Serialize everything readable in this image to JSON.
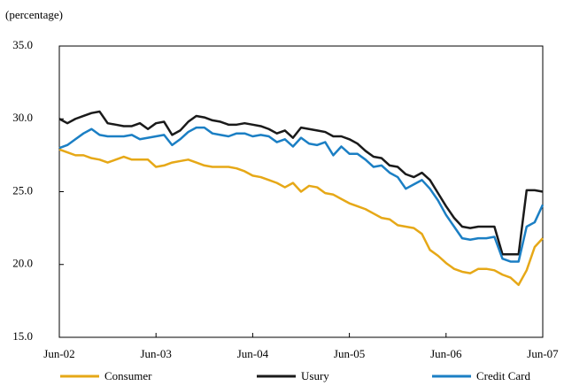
{
  "chart_data": {
    "type": "line",
    "y_label": "(percentage)",
    "categories": [
      "Jun-02",
      null,
      null,
      null,
      null,
      null,
      null,
      null,
      null,
      null,
      null,
      null,
      "Jun-03",
      null,
      null,
      null,
      null,
      null,
      null,
      null,
      null,
      null,
      null,
      null,
      "Jun-04",
      null,
      null,
      null,
      null,
      null,
      null,
      null,
      null,
      null,
      null,
      null,
      "Jun-05",
      null,
      null,
      null,
      null,
      null,
      null,
      null,
      null,
      null,
      null,
      null,
      "Jun-06",
      null,
      null,
      null,
      null,
      null,
      null,
      null,
      null,
      null,
      null,
      null,
      "Jun-07"
    ],
    "series": [
      {
        "name": "Consumer",
        "color": "#e6a817",
        "values": [
          27.9,
          27.7,
          27.5,
          27.5,
          27.3,
          27.2,
          27.0,
          27.2,
          27.4,
          27.2,
          27.2,
          27.2,
          26.7,
          26.8,
          27.0,
          27.1,
          27.2,
          27.0,
          26.8,
          26.7,
          26.7,
          26.7,
          26.6,
          26.4,
          26.1,
          26.0,
          25.8,
          25.6,
          25.3,
          25.6,
          25.0,
          25.4,
          25.3,
          24.9,
          24.8,
          24.5,
          24.2,
          24.0,
          23.8,
          23.5,
          23.2,
          23.1,
          22.7,
          22.6,
          22.5,
          22.1,
          21.0,
          20.6,
          20.1,
          19.7,
          19.5,
          19.4,
          19.7,
          19.7,
          19.6,
          19.3,
          19.1,
          18.6,
          19.6,
          21.2,
          21.8
        ]
      },
      {
        "name": "Usury",
        "color": "#1a1a1a",
        "values": [
          30.0,
          29.7,
          30.0,
          30.2,
          30.4,
          30.5,
          29.7,
          29.6,
          29.5,
          29.5,
          29.7,
          29.3,
          29.7,
          29.8,
          28.9,
          29.2,
          29.8,
          30.2,
          30.1,
          29.9,
          29.8,
          29.6,
          29.6,
          29.7,
          29.6,
          29.5,
          29.3,
          29.0,
          29.2,
          28.7,
          29.4,
          29.3,
          29.2,
          29.1,
          28.8,
          28.8,
          28.6,
          28.3,
          27.8,
          27.4,
          27.3,
          26.8,
          26.7,
          26.2,
          26.0,
          26.3,
          25.8,
          24.9,
          24.0,
          23.2,
          22.6,
          22.5,
          22.6,
          22.6,
          22.6,
          20.7,
          20.7,
          20.7,
          25.1,
          25.1,
          25.0
        ]
      },
      {
        "name": "Credit Card",
        "color": "#1b7fc4",
        "values": [
          28.0,
          28.2,
          28.6,
          29.0,
          29.3,
          28.9,
          28.8,
          28.8,
          28.8,
          28.9,
          28.6,
          28.7,
          28.8,
          28.9,
          28.2,
          28.6,
          29.1,
          29.4,
          29.4,
          29.0,
          28.9,
          28.8,
          29.0,
          29.0,
          28.8,
          28.9,
          28.8,
          28.4,
          28.6,
          28.1,
          28.7,
          28.3,
          28.2,
          28.4,
          27.5,
          28.1,
          27.6,
          27.6,
          27.2,
          26.7,
          26.8,
          26.3,
          26.0,
          25.2,
          25.5,
          25.8,
          25.2,
          24.4,
          23.4,
          22.6,
          21.8,
          21.7,
          21.8,
          21.8,
          21.9,
          20.4,
          20.2,
          20.2,
          22.6,
          22.9,
          24.1
        ]
      }
    ],
    "ylim": [
      15,
      35
    ],
    "yticks": [
      {
        "value": 15,
        "label": "15.0"
      },
      {
        "value": 20,
        "label": "20.0"
      },
      {
        "value": 25,
        "label": "25.0"
      },
      {
        "value": 30,
        "label": "30.0"
      },
      {
        "value": 35,
        "label": "35.0"
      }
    ],
    "grid": false,
    "legend": "bottom"
  }
}
